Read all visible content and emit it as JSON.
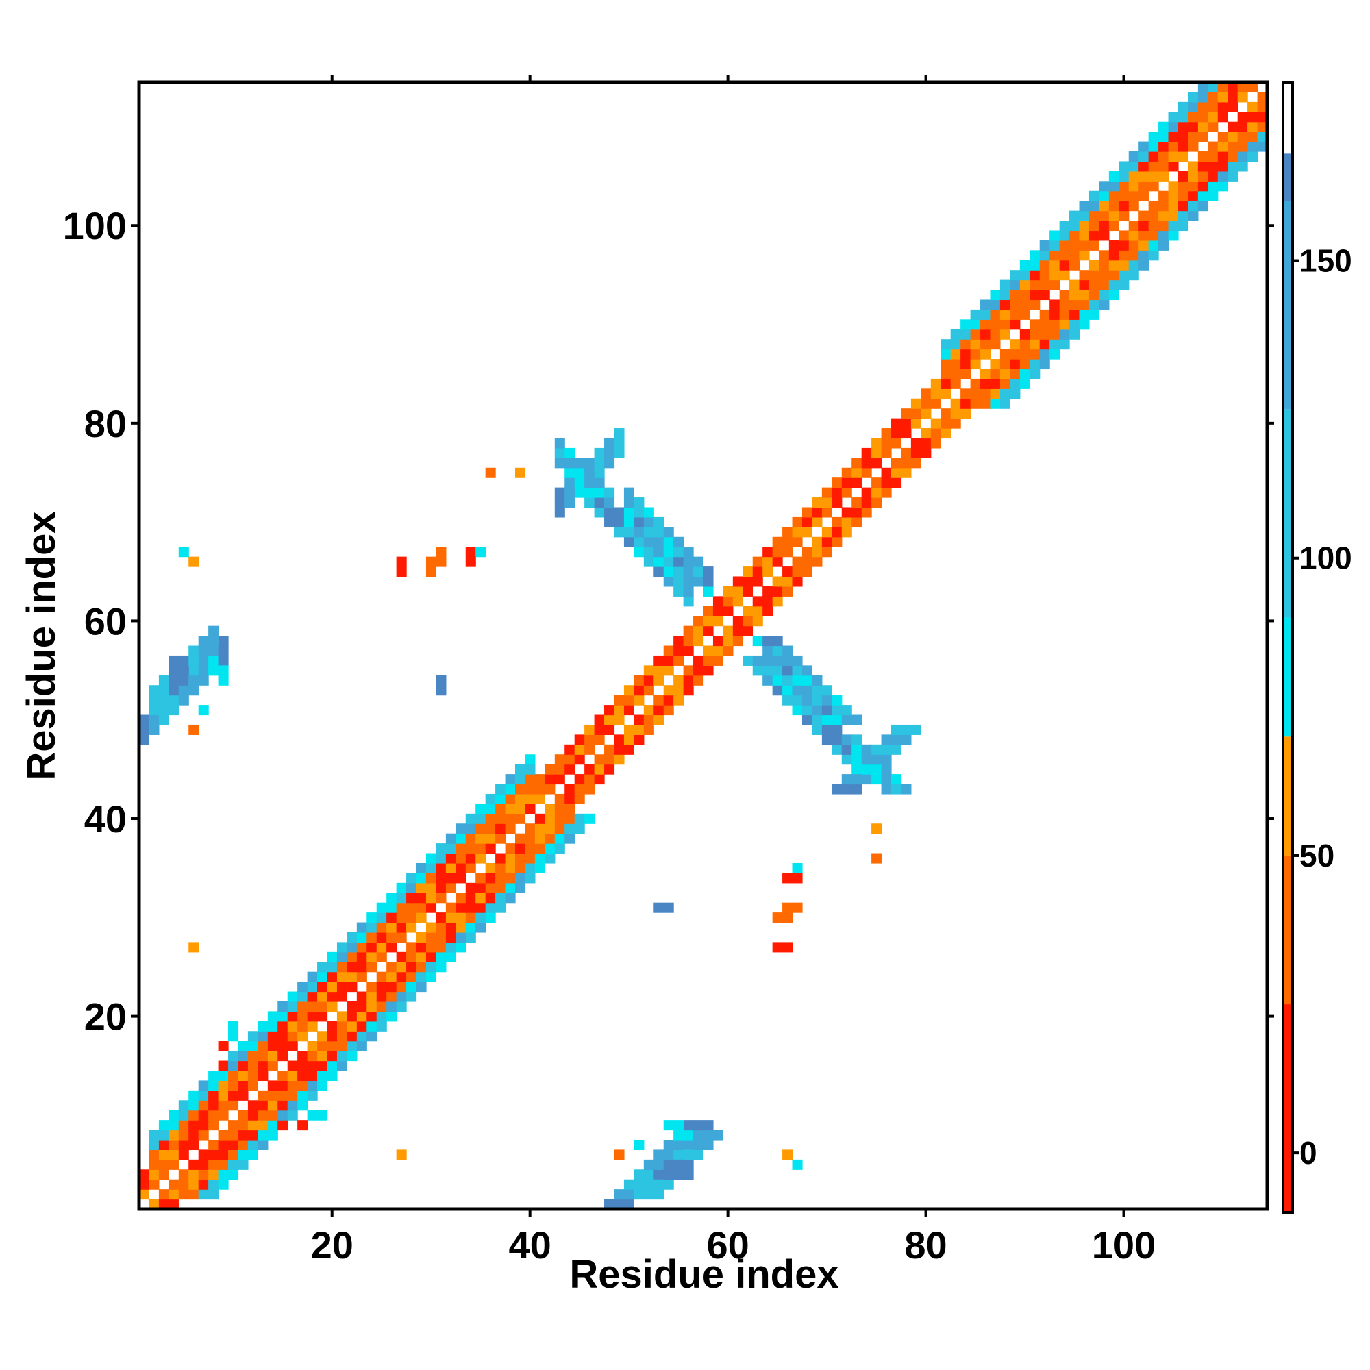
{
  "chart_data": {
    "type": "heatmap",
    "title": "",
    "xlabel": "Residue index",
    "ylabel": "Residue index",
    "xlim": [
      1,
      114
    ],
    "ylim": [
      1,
      114
    ],
    "x_ticks": [
      20,
      40,
      60,
      80,
      100
    ],
    "y_ticks": [
      20,
      40,
      60,
      80,
      100
    ],
    "colorbar": {
      "range": [
        -10,
        180
      ],
      "ticks": [
        0,
        50,
        100,
        150
      ],
      "bands": [
        {
          "from": -10,
          "to": 25,
          "color": "#ff1a00"
        },
        {
          "from": 25,
          "to": 50,
          "color": "#ff6a00"
        },
        {
          "from": 50,
          "to": 70,
          "color": "#ff9a00"
        },
        {
          "from": 70,
          "to": 90,
          "color": "#00e5f0"
        },
        {
          "from": 90,
          "to": 125,
          "color": "#2cc4e0"
        },
        {
          "from": 125,
          "to": 160,
          "color": "#3fa8d8"
        },
        {
          "from": 160,
          "to": 168,
          "color": "#4a86c4"
        },
        {
          "from": 168,
          "to": 180,
          "color": "#ffffff"
        }
      ]
    },
    "colors": {
      "red": "#ff1a00",
      "red_orange": "#ff6a00",
      "orange": "#ff9a00",
      "cyan": "#00e5f0",
      "sky": "#2cc4e0",
      "blue": "#3fa8d8",
      "steel": "#4a86c4"
    }
  }
}
